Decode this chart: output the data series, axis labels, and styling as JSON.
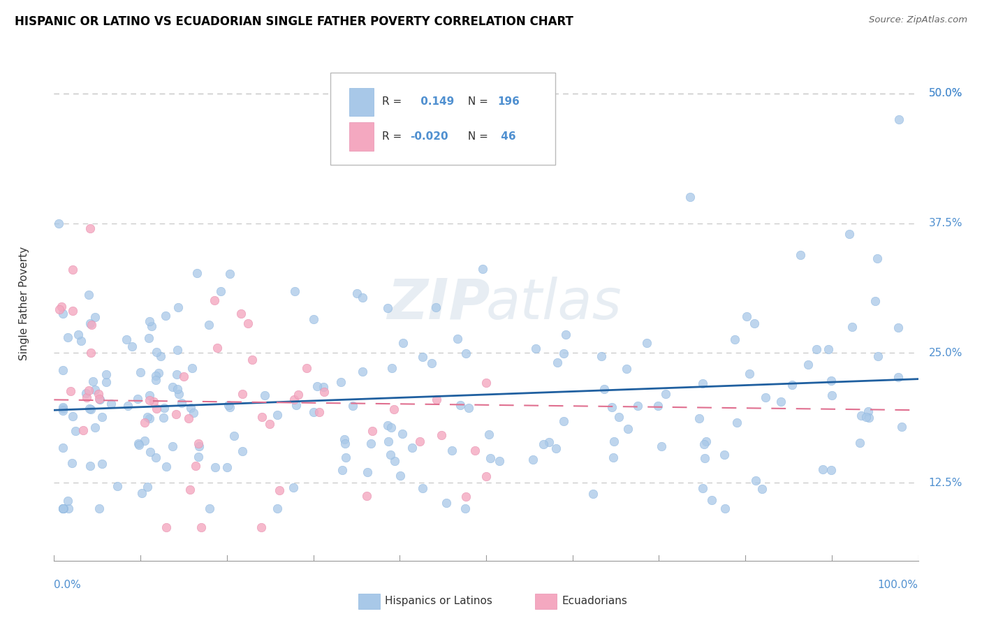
{
  "title": "HISPANIC OR LATINO VS ECUADORIAN SINGLE FATHER POVERTY CORRELATION CHART",
  "source": "Source: ZipAtlas.com",
  "ylabel": "Single Father Poverty",
  "ytick_labels": [
    "12.5%",
    "25.0%",
    "37.5%",
    "50.0%"
  ],
  "ytick_vals": [
    0.125,
    0.25,
    0.375,
    0.5
  ],
  "blue_color": "#a8c8e8",
  "pink_color": "#f4a8c0",
  "blue_line_color": "#2060a0",
  "pink_line_color": "#e07090",
  "watermark_zip": "ZIP",
  "watermark_atlas": "atlas",
  "xlim": [
    0.0,
    1.0
  ],
  "ylim": [
    0.05,
    0.545
  ],
  "blue_r": "0.149",
  "blue_n": "196",
  "pink_r": "-0.020",
  "pink_n": "46",
  "blue_trend_y0": 0.195,
  "blue_trend_y1": 0.225,
  "pink_trend_y0": 0.205,
  "pink_trend_y1": 0.195,
  "label_color": "#5090d0"
}
